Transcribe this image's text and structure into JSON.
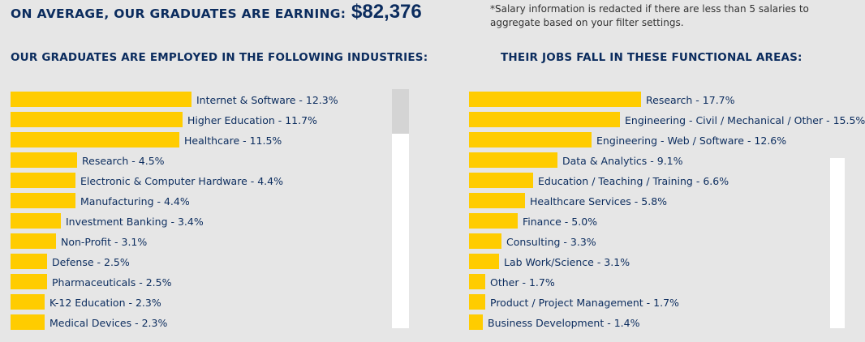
{
  "salary": {
    "label": "ON AVERAGE, OUR GRADUATES ARE EARNING:",
    "value": "$82,376",
    "note": "*Salary information is redacted if there are less than 5 salaries to aggregate based on your filter settings."
  },
  "colors": {
    "bar": "#ffcc00",
    "text": "#0b2c5e",
    "background": "#e6e6e6"
  },
  "chart_data": [
    {
      "type": "bar",
      "orientation": "horizontal",
      "title": "OUR GRADUATES ARE EMPLOYED IN THE FOLLOWING INDUSTRIES:",
      "max_value": 12.3,
      "categories": [
        "Internet & Software",
        "Higher Education",
        "Healthcare",
        "Research",
        "Electronic & Computer Hardware",
        "Manufacturing",
        "Investment Banking",
        "Non-Profit",
        "Defense",
        "Pharmaceuticals",
        "K-12 Education",
        "Medical Devices"
      ],
      "values": [
        12.3,
        11.7,
        11.5,
        4.5,
        4.4,
        4.4,
        3.4,
        3.1,
        2.5,
        2.5,
        2.3,
        2.3
      ],
      "labels": [
        "Internet & Software - 12.3%",
        "Higher Education - 11.7%",
        "Healthcare - 11.5%",
        "Research - 4.5%",
        "Electronic & Computer Hardware - 4.4%",
        "Manufacturing - 4.4%",
        "Investment Banking - 3.4%",
        "Non-Profit - 3.1%",
        "Defense - 2.5%",
        "Pharmaceuticals - 2.5%",
        "K-12 Education - 2.3%",
        "Medical Devices - 2.3%"
      ]
    },
    {
      "type": "bar",
      "orientation": "horizontal",
      "title": "THEIR JOBS FALL IN THESE FUNCTIONAL AREAS:",
      "max_value": 17.7,
      "categories": [
        "Research",
        "Engineering - Civil / Mechanical / Other",
        "Engineering - Web / Software",
        "Data & Analytics",
        "Education / Teaching / Training",
        "Healthcare Services",
        "Finance",
        "Consulting",
        "Lab Work/Science",
        "Other",
        "Product / Project Management",
        "Business Development"
      ],
      "values": [
        17.7,
        15.5,
        12.6,
        9.1,
        6.6,
        5.8,
        5.0,
        3.3,
        3.1,
        1.7,
        1.7,
        1.4
      ],
      "labels": [
        "Research - 17.7%",
        "Engineering - Civil / Mechanical / Other - 15.5%",
        "Engineering - Web / Software - 12.6%",
        "Data & Analytics - 9.1%",
        "Education / Teaching / Training - 6.6%",
        "Healthcare Services - 5.8%",
        "Finance - 5.0%",
        "Consulting - 3.3%",
        "Lab Work/Science - 3.1%",
        "Other - 1.7%",
        "Product / Project Management - 1.7%",
        "Business Development - 1.4%"
      ]
    }
  ]
}
